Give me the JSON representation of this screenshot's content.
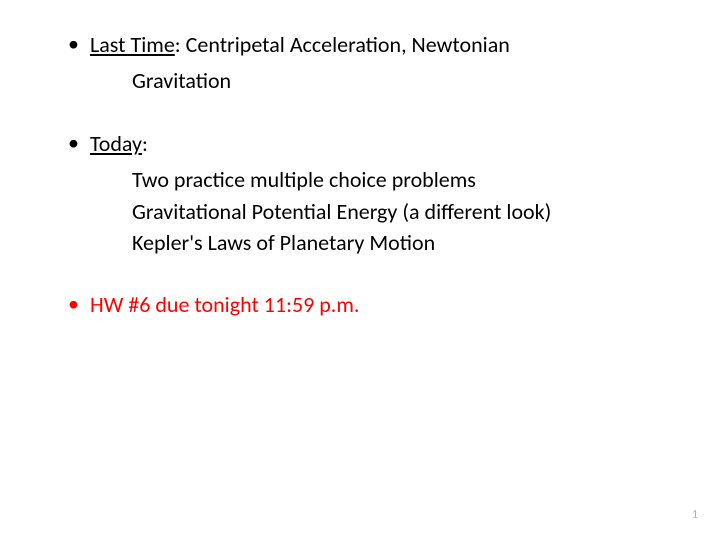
{
  "colors": {
    "background": "#ffffff",
    "text": "#000000",
    "highlight": "#ff0000",
    "pageNumber": "#b0b0b0"
  },
  "typography": {
    "bodyFontSize": 22,
    "pageNumFontSize": 12,
    "fontFamily": "Calibri, Arial, sans-serif",
    "lineHeight": 1.35
  },
  "bullets": {
    "lastTime": {
      "label": "Last Time",
      "colon": ":  ",
      "content": "Centripetal Acceleration, Newtonian",
      "continuation": "Gravitation"
    },
    "today": {
      "label": "Today",
      "colon": ":",
      "items": [
        "Two practice multiple choice problems",
        "Gravitational Potential Energy (a different look)",
        "Kepler's Laws of Planetary Motion"
      ]
    },
    "hw": {
      "text": "HW #6 due tonight 11:59 p.m."
    }
  },
  "pageNumber": "1",
  "bulletChar": "•"
}
